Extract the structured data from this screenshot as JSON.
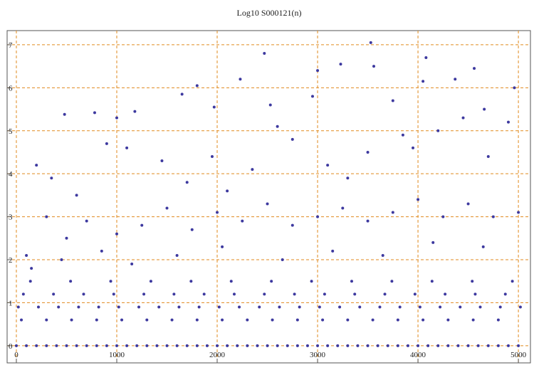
{
  "chart_data": {
    "type": "scatter",
    "title": "Log10 S000121(n)",
    "color": "#3d399f",
    "grid": true,
    "grid_color": "#e08a1e",
    "xlim": [
      -92,
      5120
    ],
    "ylim": [
      -0.4,
      7.33
    ],
    "xticks": [
      0,
      1000,
      2000,
      3000,
      4000,
      5000
    ],
    "yticks": [
      0,
      1,
      2,
      3,
      4,
      5,
      6,
      7
    ],
    "x": [
      0,
      100,
      200,
      300,
      400,
      500,
      600,
      700,
      800,
      900,
      1000,
      1100,
      1200,
      1300,
      1400,
      1500,
      1600,
      1700,
      1800,
      1900,
      2000,
      2100,
      2200,
      2300,
      2400,
      2500,
      2600,
      2700,
      2800,
      2900,
      3000,
      3100,
      3200,
      3300,
      3400,
      3500,
      3600,
      3700,
      3800,
      3900,
      4000,
      4100,
      4200,
      4300,
      4400,
      4500,
      4600,
      4700,
      4800,
      4900,
      5000,
      50,
      300,
      550,
      800,
      1050,
      1300,
      1550,
      1800,
      2050,
      2300,
      2550,
      2800,
      3050,
      3300,
      3550,
      3800,
      4050,
      4300,
      4550,
      4800,
      20,
      220,
      420,
      620,
      820,
      1020,
      1220,
      1420,
      1620,
      1820,
      2020,
      2220,
      2420,
      2620,
      2820,
      3020,
      3220,
      3420,
      3620,
      3820,
      4020,
      4220,
      4420,
      4620,
      4820,
      5020,
      70,
      370,
      670,
      970,
      1270,
      1570,
      1870,
      2170,
      2470,
      2770,
      3070,
      3370,
      3670,
      3970,
      4270,
      4570,
      4870,
      140,
      540,
      940,
      1340,
      1740,
      2140,
      2540,
      2940,
      3340,
      3740,
      4140,
      4540,
      4940,
      480,
      780,
      1000,
      1180,
      1650,
      1800,
      1970,
      2230,
      2470,
      2530,
      2950,
      3000,
      3230,
      3530,
      3560,
      3750,
      4050,
      4080,
      4370,
      4560,
      4660,
      4960,
      200,
      350,
      600,
      900,
      1100,
      1450,
      1700,
      1950,
      2100,
      2350,
      2600,
      2750,
      3100,
      3300,
      3500,
      3850,
      3950,
      4200,
      4450,
      4700,
      4900,
      100,
      300,
      500,
      700,
      1000,
      1250,
      1500,
      1750,
      2000,
      2250,
      2500,
      2750,
      3000,
      3250,
      3500,
      3750,
      4000,
      4250,
      4500,
      4750,
      5000,
      150,
      450,
      850,
      1150,
      1600,
      2050,
      2650,
      3150,
      3650,
      4150,
      4650
    ],
    "y": [
      0,
      0,
      0,
      0,
      0,
      0,
      0,
      0,
      0,
      0,
      0,
      0,
      0,
      0,
      0,
      0,
      0,
      0,
      0,
      0,
      0,
      0,
      0,
      0,
      0,
      0,
      0,
      0,
      0,
      0,
      0,
      0,
      0,
      0,
      0,
      0,
      0,
      0,
      0,
      0,
      0,
      0,
      0,
      0,
      0,
      0,
      0,
      0,
      0,
      0,
      0,
      0.6,
      0.6,
      0.6,
      0.6,
      0.6,
      0.6,
      0.6,
      0.6,
      0.6,
      0.6,
      0.6,
      0.6,
      0.6,
      0.6,
      0.6,
      0.6,
      0.6,
      0.6,
      0.6,
      0.6,
      0.9,
      0.9,
      0.9,
      0.9,
      0.9,
      0.9,
      0.9,
      0.9,
      0.9,
      0.9,
      0.9,
      0.9,
      0.9,
      0.9,
      0.9,
      0.9,
      0.9,
      0.9,
      0.9,
      0.9,
      0.9,
      0.9,
      0.9,
      0.9,
      0.9,
      0.9,
      1.2,
      1.2,
      1.2,
      1.2,
      1.2,
      1.2,
      1.2,
      1.2,
      1.2,
      1.2,
      1.2,
      1.2,
      1.2,
      1.2,
      1.2,
      1.2,
      1.2,
      1.5,
      1.5,
      1.5,
      1.5,
      1.5,
      1.5,
      1.5,
      1.5,
      1.5,
      1.5,
      1.5,
      1.5,
      1.5,
      5.38,
      5.42,
      5.3,
      5.45,
      5.85,
      6.05,
      5.55,
      6.2,
      6.8,
      5.6,
      5.8,
      6.4,
      6.55,
      7.05,
      6.5,
      5.7,
      6.15,
      6.7,
      6.2,
      6.45,
      5.5,
      6.0,
      4.2,
      3.9,
      3.5,
      4.7,
      4.6,
      4.3,
      3.8,
      4.4,
      3.6,
      4.1,
      5.1,
      4.8,
      4.2,
      3.9,
      4.5,
      4.9,
      4.6,
      5.0,
      5.3,
      4.4,
      5.2,
      2.1,
      3.0,
      2.5,
      2.9,
      2.6,
      2.8,
      3.2,
      2.7,
      3.1,
      2.9,
      3.3,
      2.8,
      3.0,
      3.2,
      2.9,
      3.1,
      3.4,
      3.0,
      3.3,
      3.0,
      3.1,
      1.8,
      2.0,
      2.2,
      1.9,
      2.1,
      2.3,
      2.0,
      2.2,
      2.1,
      2.4,
      2.3
    ]
  }
}
